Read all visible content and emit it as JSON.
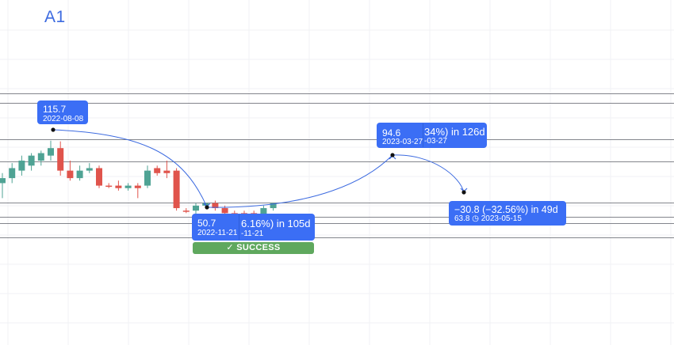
{
  "symbol": "A1",
  "chart_data": {
    "type": "candlestick",
    "note_series": "price candles with projection labels",
    "candles": [
      {
        "o": 99,
        "h": 103,
        "l": 93,
        "c": 101,
        "dir": "up"
      },
      {
        "o": 101,
        "h": 107,
        "l": 99,
        "c": 105,
        "dir": "up"
      },
      {
        "o": 104,
        "h": 110,
        "l": 102,
        "c": 108,
        "dir": "up"
      },
      {
        "o": 106,
        "h": 111,
        "l": 104,
        "c": 110,
        "dir": "up"
      },
      {
        "o": 108,
        "h": 112,
        "l": 106,
        "c": 111,
        "dir": "up"
      },
      {
        "o": 110,
        "h": 116,
        "l": 108,
        "c": 113,
        "dir": "up"
      },
      {
        "o": 113,
        "h": 115.7,
        "l": 102,
        "c": 104,
        "dir": "down"
      },
      {
        "o": 104,
        "h": 108,
        "l": 100,
        "c": 101,
        "dir": "down"
      },
      {
        "o": 101,
        "h": 106,
        "l": 100,
        "c": 104,
        "dir": "up"
      },
      {
        "o": 104,
        "h": 107,
        "l": 103,
        "c": 105,
        "dir": "up"
      },
      {
        "o": 105,
        "h": 106,
        "l": 97,
        "c": 98,
        "dir": "down"
      },
      {
        "o": 98,
        "h": 99,
        "l": 97,
        "c": 98,
        "dir": "down"
      },
      {
        "o": 98,
        "h": 100,
        "l": 96,
        "c": 97,
        "dir": "down"
      },
      {
        "o": 97,
        "h": 99,
        "l": 96,
        "c": 98,
        "dir": "up"
      },
      {
        "o": 98,
        "h": 99,
        "l": 93,
        "c": 97,
        "dir": "down"
      },
      {
        "o": 98,
        "h": 106,
        "l": 97,
        "c": 104,
        "dir": "up"
      },
      {
        "o": 105,
        "h": 106,
        "l": 102,
        "c": 103,
        "dir": "down"
      },
      {
        "o": 103,
        "h": 108,
        "l": 101,
        "c": 104,
        "dir": "down"
      },
      {
        "o": 104,
        "h": 105,
        "l": 88,
        "c": 89,
        "dir": "down"
      },
      {
        "o": 88,
        "h": 89,
        "l": 87,
        "c": 88,
        "dir": "down"
      },
      {
        "o": 88,
        "h": 91,
        "l": 84,
        "c": 90,
        "dir": "up"
      },
      {
        "o": 90,
        "h": 91,
        "l": 89,
        "c": 91,
        "dir": "up"
      },
      {
        "o": 91,
        "h": 92,
        "l": 88,
        "c": 89,
        "dir": "down"
      },
      {
        "o": 89,
        "h": 90,
        "l": 86,
        "c": 87,
        "dir": "down"
      },
      {
        "o": 87,
        "h": 88,
        "l": 86,
        "c": 87,
        "dir": "down"
      },
      {
        "o": 87,
        "h": 88,
        "l": 85,
        "c": 86,
        "dir": "down"
      },
      {
        "o": 86,
        "h": 88,
        "l": 85,
        "c": 87,
        "dir": "down"
      },
      {
        "o": 86,
        "h": 90,
        "l": 86,
        "c": 89,
        "dir": "up"
      },
      {
        "o": 89,
        "h": 91,
        "l": 88,
        "c": 91,
        "dir": "up"
      }
    ],
    "horizontal_levels": [
      135,
      131,
      116.6,
      107.8,
      91.1,
      85.6,
      83,
      77.3
    ],
    "points": [
      {
        "name": "high",
        "date": "2022-08-08",
        "value": 115.7
      },
      {
        "name": "low",
        "date": "2022-11-21",
        "value": 50.7
      },
      {
        "name": "rebound",
        "date": "2023-03-27",
        "value": 94.6
      },
      {
        "name": "target",
        "date": "2023-05-15",
        "value": 63.8
      }
    ],
    "colors": {
      "up": "#4fa394",
      "down": "#e0544c",
      "label": "#3b6ef5",
      "success": "#5fa85e",
      "curve": "#3d6be0"
    }
  },
  "labels": {
    "high": {
      "value": "115.7",
      "date": "2022-08-08"
    },
    "low": {
      "value": "50.7",
      "date": "2022-11-21",
      "back_line1": "6.16%) in 105d",
      "back_line2": "-11-21"
    },
    "rebound": {
      "value": "94.6",
      "date": "2023-03-27",
      "back_line1": "34%) in 126d",
      "back_line2": "-03-27"
    },
    "target": {
      "line1": "−30.8 (−32.56%) in 49d",
      "line2": "63.8 ◷ 2023-05-15"
    }
  },
  "success_label": "✓ SUCCESS"
}
